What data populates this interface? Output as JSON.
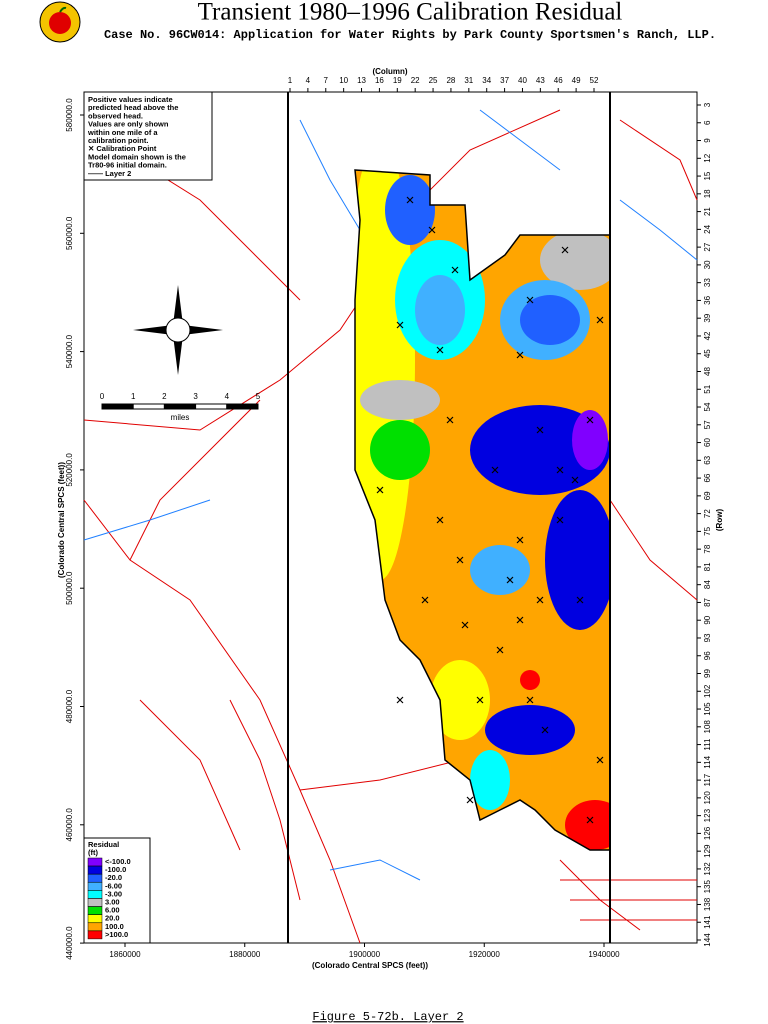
{
  "header": {
    "title": "Transient 1980–1996 Calibration Residual",
    "subtitle": "Case No. 96CW014: Application for Water Rights by Park County Sportsmen's Ranch, LLP."
  },
  "map": {
    "column_axis_label": "(Column)",
    "column_ticks": [
      1,
      4,
      7,
      10,
      13,
      16,
      19,
      22,
      25,
      28,
      31,
      34,
      37,
      40,
      43,
      46,
      49,
      52
    ],
    "row_axis_label": "(Row)",
    "row_ticks": [
      3,
      6,
      9,
      12,
      15,
      18,
      21,
      24,
      27,
      30,
      33,
      36,
      39,
      42,
      45,
      48,
      51,
      54,
      57,
      60,
      63,
      66,
      69,
      72,
      75,
      78,
      81,
      84,
      87,
      90,
      93,
      96,
      99,
      102,
      105,
      108,
      111,
      114,
      117,
      120,
      123,
      126,
      129,
      132,
      135,
      138,
      141,
      144
    ],
    "y_axis_label": "(Colorado Central SPCS (feet))",
    "y_ticks": [
      "580000.0",
      "560000.0",
      "540000.0",
      "520000.0",
      "500000.0",
      "480000.0",
      "460000.0",
      "440000.0"
    ],
    "x_axis_label": "(Colorado Central SPCS (feet))",
    "x_ticks": [
      "1860000",
      "1880000",
      "1900000",
      "1920000",
      "1940000"
    ]
  },
  "notes": [
    "Positive values indicate",
    "predicted head above the",
    "observed head.",
    "Values are only shown",
    "within one mile of a",
    "calibration point.",
    "✕ Calibration Point",
    "Model domain shown is the",
    "Tr80-96 initial domain.",
    "—— Layer 2"
  ],
  "scale_bar": {
    "ticks": [
      "0",
      "1",
      "2",
      "3",
      "4",
      "5"
    ],
    "unit": "miles"
  },
  "legend": {
    "title": "Residual",
    "unit": "(ft)",
    "items": [
      {
        "label": "<-100.0",
        "color": "#8000ff"
      },
      {
        "label": "-100.0",
        "color": "#0000e0"
      },
      {
        "label": "-20.0",
        "color": "#2060ff"
      },
      {
        "label": "-6.00",
        "color": "#40b0ff"
      },
      {
        "label": "-3.00",
        "color": "#00ffff"
      },
      {
        "label": "3.00",
        "color": "#c0c0c0"
      },
      {
        "label": "6.00",
        "color": "#00e000"
      },
      {
        "label": "20.0",
        "color": "#ffff00"
      },
      {
        "label": "100.0",
        "color": "#ffa500"
      },
      {
        "label": ">100.0",
        "color": "#ff0000"
      }
    ]
  },
  "footer": {
    "caption": "Figure 5-72b.  Layer 2"
  }
}
